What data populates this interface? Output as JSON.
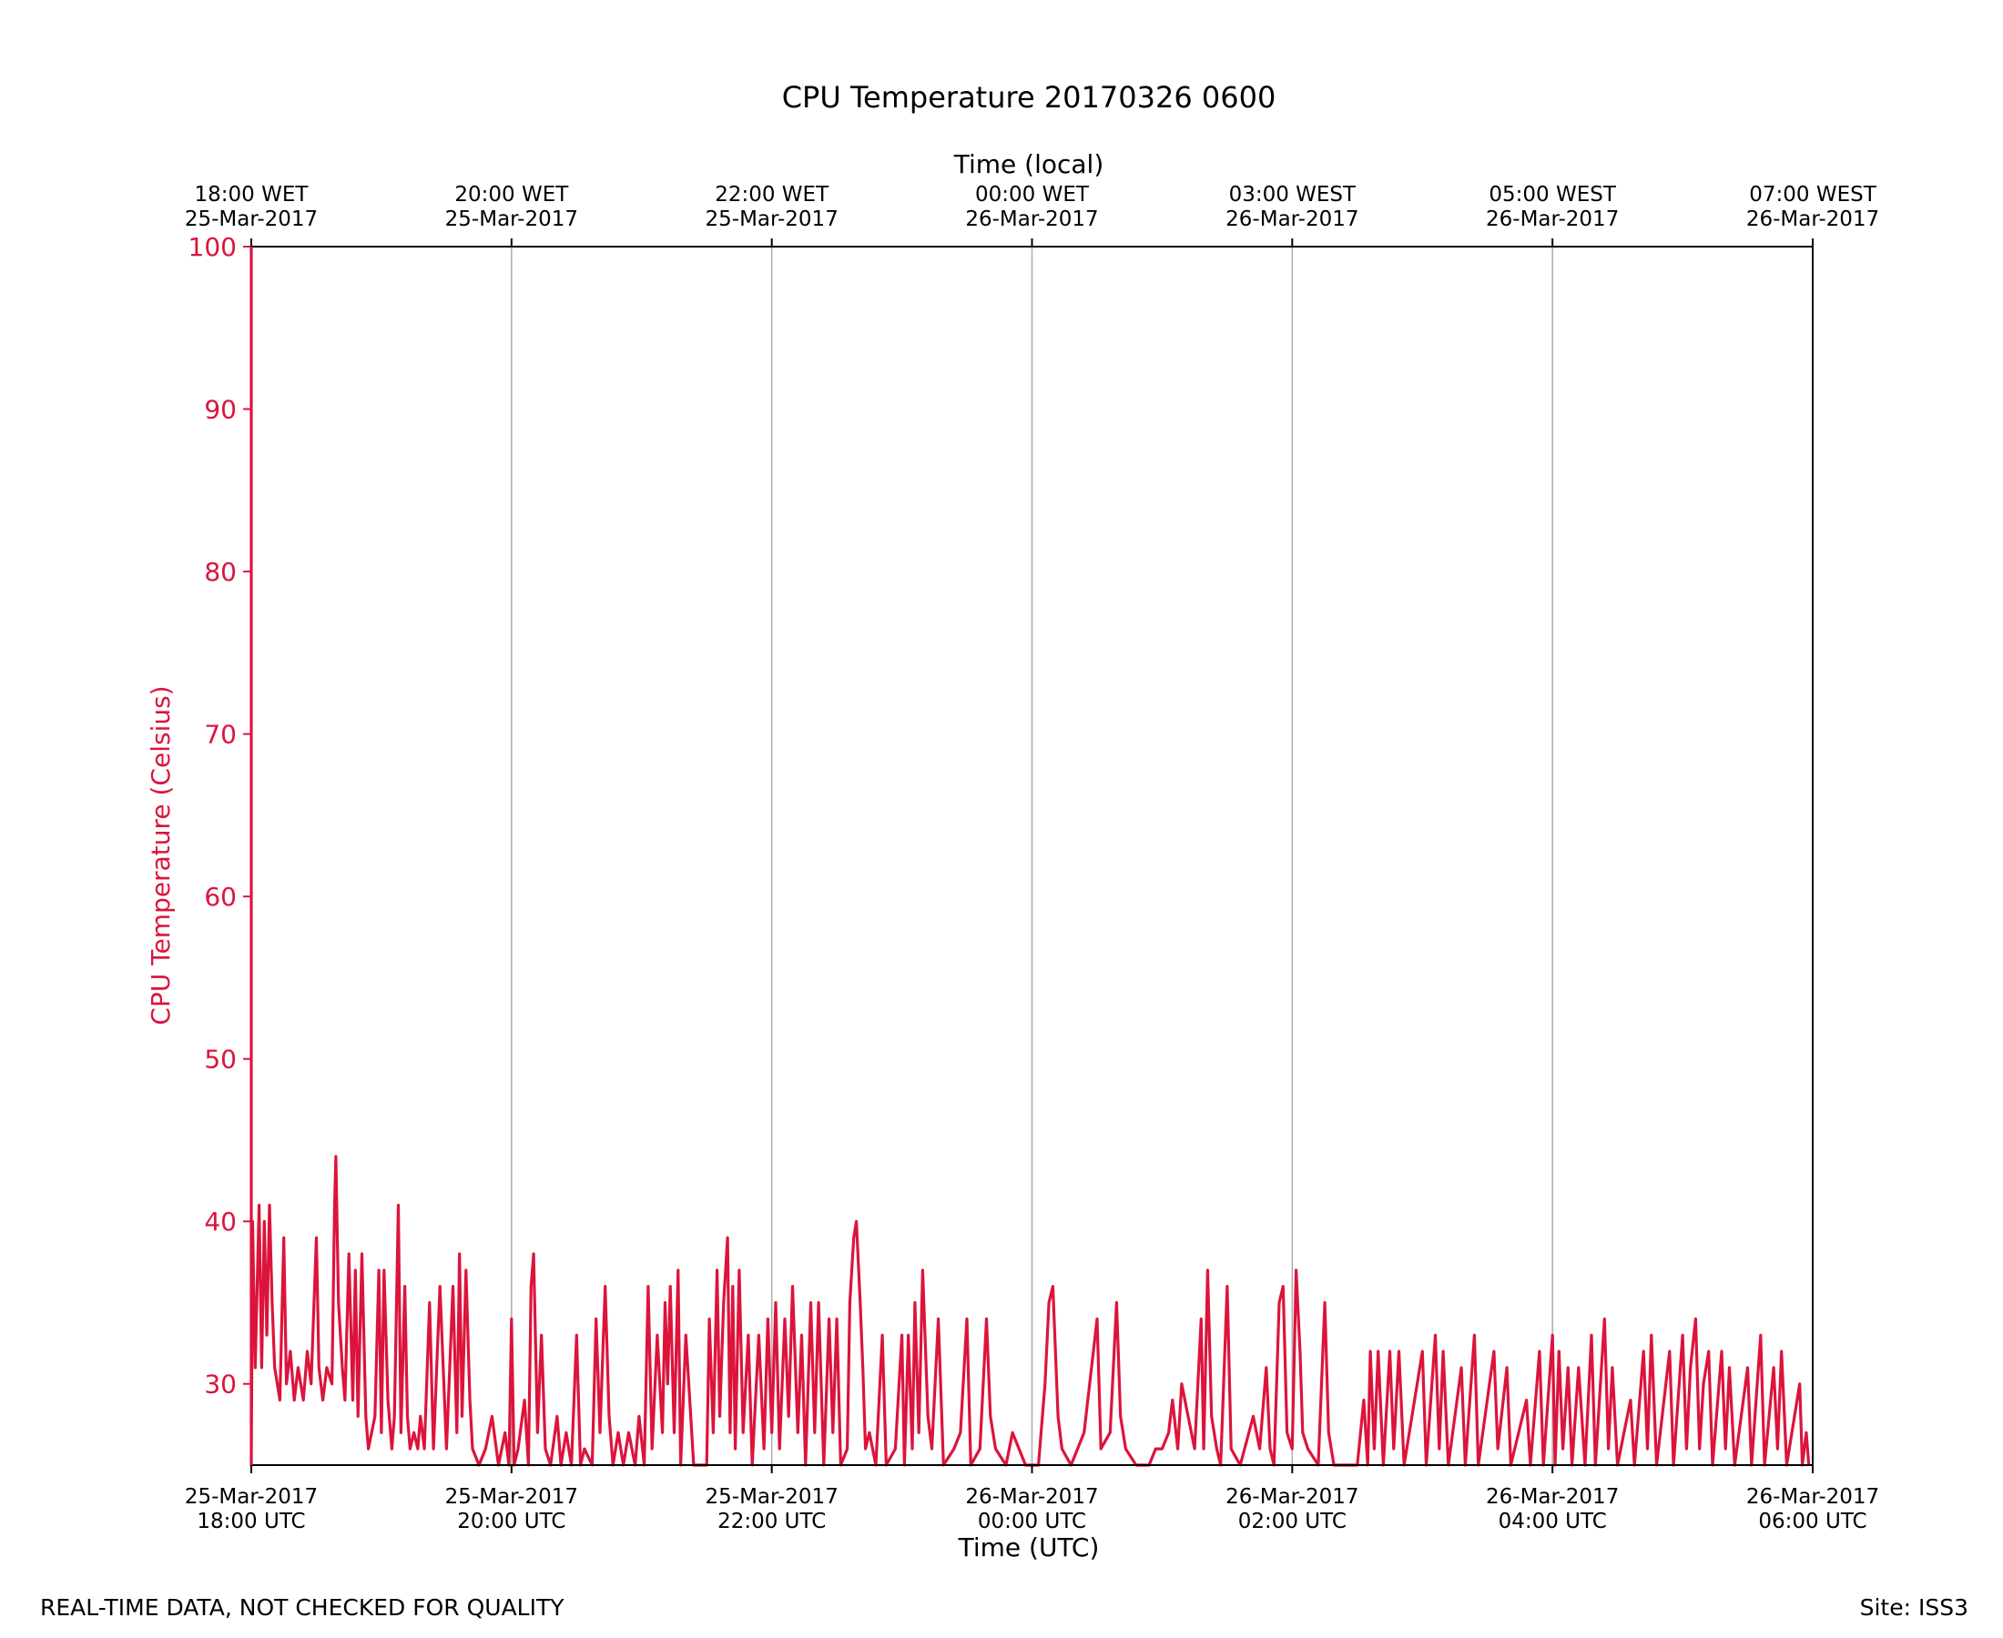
{
  "chart_data": {
    "type": "line",
    "title": "CPU Temperature 20170326 0600",
    "top_axis_title": "Time (local)",
    "xlabel": "Time (UTC)",
    "ylabel": "CPU Temperature (Celsius)",
    "ylim": [
      25,
      100
    ],
    "xlim_hours": [
      0,
      12
    ],
    "yticks": [
      30,
      40,
      50,
      60,
      70,
      80,
      90,
      100
    ],
    "bottom_ticks": [
      {
        "hour": 0,
        "line1": "25-Mar-2017",
        "line2": "18:00 UTC"
      },
      {
        "hour": 2,
        "line1": "25-Mar-2017",
        "line2": "20:00 UTC"
      },
      {
        "hour": 4,
        "line1": "25-Mar-2017",
        "line2": "22:00 UTC"
      },
      {
        "hour": 6,
        "line1": "26-Mar-2017",
        "line2": "00:00 UTC"
      },
      {
        "hour": 8,
        "line1": "26-Mar-2017",
        "line2": "02:00 UTC"
      },
      {
        "hour": 10,
        "line1": "26-Mar-2017",
        "line2": "04:00 UTC"
      },
      {
        "hour": 12,
        "line1": "26-Mar-2017",
        "line2": "06:00 UTC"
      }
    ],
    "top_ticks": [
      {
        "hour": 0,
        "line1": "18:00 WET",
        "line2": "25-Mar-2017"
      },
      {
        "hour": 2,
        "line1": "20:00 WET",
        "line2": "25-Mar-2017"
      },
      {
        "hour": 4,
        "line1": "22:00 WET",
        "line2": "25-Mar-2017"
      },
      {
        "hour": 6,
        "line1": "00:00 WET",
        "line2": "26-Mar-2017"
      },
      {
        "hour": 8,
        "line1": "03:00 WEST",
        "line2": "26-Mar-2017"
      },
      {
        "hour": 10,
        "line1": "05:00 WEST",
        "line2": "26-Mar-2017"
      },
      {
        "hour": 12,
        "line1": "07:00 WEST",
        "line2": "26-Mar-2017"
      }
    ],
    "grid_vertical": true,
    "series": [
      {
        "name": "CPU Temperature",
        "color": "#dc143c",
        "points": [
          [
            0,
            100
          ],
          [
            0,
            25
          ],
          [
            0.01,
            40
          ],
          [
            0.03,
            31
          ],
          [
            0.06,
            41
          ],
          [
            0.08,
            31
          ],
          [
            0.1,
            40
          ],
          [
            0.12,
            33
          ],
          [
            0.14,
            41
          ],
          [
            0.16,
            35
          ],
          [
            0.18,
            31
          ],
          [
            0.2,
            30
          ],
          [
            0.22,
            29
          ],
          [
            0.25,
            39
          ],
          [
            0.27,
            30
          ],
          [
            0.3,
            32
          ],
          [
            0.33,
            29
          ],
          [
            0.36,
            31
          ],
          [
            0.4,
            29
          ],
          [
            0.43,
            32
          ],
          [
            0.46,
            30
          ],
          [
            0.5,
            39
          ],
          [
            0.52,
            31
          ],
          [
            0.55,
            29
          ],
          [
            0.58,
            31
          ],
          [
            0.62,
            30
          ],
          [
            0.64,
            41
          ],
          [
            0.65,
            44
          ],
          [
            0.67,
            35
          ],
          [
            0.7,
            31
          ],
          [
            0.72,
            29
          ],
          [
            0.75,
            38
          ],
          [
            0.78,
            29
          ],
          [
            0.8,
            37
          ],
          [
            0.82,
            28
          ],
          [
            0.85,
            38
          ],
          [
            0.88,
            28
          ],
          [
            0.9,
            26
          ],
          [
            0.95,
            28
          ],
          [
            0.98,
            37
          ],
          [
            1.0,
            27
          ],
          [
            1.02,
            37
          ],
          [
            1.05,
            29
          ],
          [
            1.08,
            26
          ],
          [
            1.1,
            28
          ],
          [
            1.13,
            41
          ],
          [
            1.15,
            27
          ],
          [
            1.18,
            36
          ],
          [
            1.2,
            28
          ],
          [
            1.22,
            26
          ],
          [
            1.25,
            27
          ],
          [
            1.28,
            26
          ],
          [
            1.3,
            28
          ],
          [
            1.33,
            26
          ],
          [
            1.37,
            35
          ],
          [
            1.4,
            26
          ],
          [
            1.45,
            36
          ],
          [
            1.5,
            26
          ],
          [
            1.55,
            36
          ],
          [
            1.58,
            27
          ],
          [
            1.6,
            38
          ],
          [
            1.62,
            28
          ],
          [
            1.65,
            37
          ],
          [
            1.68,
            29
          ],
          [
            1.7,
            26
          ],
          [
            1.75,
            25
          ],
          [
            1.8,
            26
          ],
          [
            1.85,
            28
          ],
          [
            1.9,
            25
          ],
          [
            1.95,
            27
          ],
          [
            1.98,
            25
          ],
          [
            2.0,
            34
          ],
          [
            2.02,
            25
          ],
          [
            2.05,
            26
          ],
          [
            2.1,
            29
          ],
          [
            2.13,
            25
          ],
          [
            2.15,
            36
          ],
          [
            2.17,
            38
          ],
          [
            2.2,
            27
          ],
          [
            2.23,
            33
          ],
          [
            2.26,
            26
          ],
          [
            2.3,
            25
          ],
          [
            2.35,
            28
          ],
          [
            2.38,
            25
          ],
          [
            2.42,
            27
          ],
          [
            2.46,
            25
          ],
          [
            2.5,
            33
          ],
          [
            2.53,
            25
          ],
          [
            2.56,
            26
          ],
          [
            2.62,
            25
          ],
          [
            2.65,
            34
          ],
          [
            2.68,
            27
          ],
          [
            2.72,
            36
          ],
          [
            2.75,
            28
          ],
          [
            2.78,
            25
          ],
          [
            2.82,
            27
          ],
          [
            2.86,
            25
          ],
          [
            2.9,
            27
          ],
          [
            2.95,
            25
          ],
          [
            2.98,
            28
          ],
          [
            3.02,
            25
          ],
          [
            3.05,
            36
          ],
          [
            3.08,
            26
          ],
          [
            3.12,
            33
          ],
          [
            3.16,
            27
          ],
          [
            3.18,
            35
          ],
          [
            3.2,
            30
          ],
          [
            3.22,
            36
          ],
          [
            3.25,
            27
          ],
          [
            3.28,
            37
          ],
          [
            3.3,
            25
          ],
          [
            3.34,
            33
          ],
          [
            3.4,
            25
          ],
          [
            3.5,
            25
          ],
          [
            3.52,
            34
          ],
          [
            3.55,
            27
          ],
          [
            3.58,
            37
          ],
          [
            3.6,
            28
          ],
          [
            3.63,
            35
          ],
          [
            3.66,
            39
          ],
          [
            3.68,
            27
          ],
          [
            3.7,
            36
          ],
          [
            3.72,
            26
          ],
          [
            3.75,
            37
          ],
          [
            3.78,
            27
          ],
          [
            3.82,
            33
          ],
          [
            3.85,
            25
          ],
          [
            3.9,
            33
          ],
          [
            3.94,
            26
          ],
          [
            3.97,
            34
          ],
          [
            4.0,
            27
          ],
          [
            4.03,
            35
          ],
          [
            4.06,
            26
          ],
          [
            4.1,
            34
          ],
          [
            4.13,
            28
          ],
          [
            4.16,
            36
          ],
          [
            4.2,
            27
          ],
          [
            4.23,
            33
          ],
          [
            4.26,
            25
          ],
          [
            4.3,
            35
          ],
          [
            4.33,
            27
          ],
          [
            4.36,
            35
          ],
          [
            4.4,
            25
          ],
          [
            4.44,
            34
          ],
          [
            4.47,
            27
          ],
          [
            4.5,
            34
          ],
          [
            4.53,
            25
          ],
          [
            4.58,
            26
          ],
          [
            4.6,
            35
          ],
          [
            4.63,
            39
          ],
          [
            4.65,
            40
          ],
          [
            4.68,
            35
          ],
          [
            4.7,
            31
          ],
          [
            4.72,
            26
          ],
          [
            4.75,
            27
          ],
          [
            4.8,
            25
          ],
          [
            4.85,
            33
          ],
          [
            4.88,
            25
          ],
          [
            4.95,
            26
          ],
          [
            5.0,
            33
          ],
          [
            5.02,
            25
          ],
          [
            5.05,
            33
          ],
          [
            5.08,
            26
          ],
          [
            5.1,
            35
          ],
          [
            5.13,
            27
          ],
          [
            5.16,
            37
          ],
          [
            5.2,
            28
          ],
          [
            5.23,
            26
          ],
          [
            5.28,
            34
          ],
          [
            5.32,
            25
          ],
          [
            5.4,
            26
          ],
          [
            5.45,
            27
          ],
          [
            5.5,
            34
          ],
          [
            5.53,
            25
          ],
          [
            5.6,
            26
          ],
          [
            5.65,
            34
          ],
          [
            5.68,
            28
          ],
          [
            5.72,
            26
          ],
          [
            5.8,
            25
          ],
          [
            5.85,
            27
          ],
          [
            5.9,
            26
          ],
          [
            5.95,
            25
          ],
          [
            6.0,
            25
          ],
          [
            6.05,
            25
          ],
          [
            6.1,
            30
          ],
          [
            6.13,
            35
          ],
          [
            6.16,
            36
          ],
          [
            6.2,
            28
          ],
          [
            6.23,
            26
          ],
          [
            6.3,
            25
          ],
          [
            6.4,
            27
          ],
          [
            6.5,
            34
          ],
          [
            6.53,
            26
          ],
          [
            6.6,
            27
          ],
          [
            6.65,
            35
          ],
          [
            6.68,
            28
          ],
          [
            6.72,
            26
          ],
          [
            6.8,
            25
          ],
          [
            6.9,
            25
          ],
          [
            6.95,
            26
          ],
          [
            7.0,
            26
          ],
          [
            7.05,
            27
          ],
          [
            7.08,
            29
          ],
          [
            7.12,
            26
          ],
          [
            7.15,
            30
          ],
          [
            7.2,
            28
          ],
          [
            7.25,
            26
          ],
          [
            7.3,
            34
          ],
          [
            7.32,
            26
          ],
          [
            7.35,
            37
          ],
          [
            7.38,
            28
          ],
          [
            7.42,
            26
          ],
          [
            7.45,
            25
          ],
          [
            7.5,
            36
          ],
          [
            7.53,
            26
          ],
          [
            7.6,
            25
          ],
          [
            7.7,
            28
          ],
          [
            7.75,
            26
          ],
          [
            7.8,
            31
          ],
          [
            7.83,
            26
          ],
          [
            7.86,
            25
          ],
          [
            7.9,
            35
          ],
          [
            7.93,
            36
          ],
          [
            7.96,
            27
          ],
          [
            8.0,
            26
          ],
          [
            8.03,
            37
          ],
          [
            8.06,
            32
          ],
          [
            8.08,
            27
          ],
          [
            8.12,
            26
          ],
          [
            8.2,
            25
          ],
          [
            8.25,
            35
          ],
          [
            8.28,
            27
          ],
          [
            8.32,
            25
          ],
          [
            8.4,
            25
          ],
          [
            8.5,
            25
          ],
          [
            8.55,
            29
          ],
          [
            8.58,
            25
          ],
          [
            8.6,
            32
          ],
          [
            8.63,
            26
          ],
          [
            8.66,
            32
          ],
          [
            8.7,
            25
          ],
          [
            8.75,
            32
          ],
          [
            8.78,
            26
          ],
          [
            8.82,
            32
          ],
          [
            8.86,
            25
          ],
          [
            9.0,
            32
          ],
          [
            9.03,
            25
          ],
          [
            9.1,
            33
          ],
          [
            9.13,
            26
          ],
          [
            9.16,
            32
          ],
          [
            9.2,
            25
          ],
          [
            9.3,
            31
          ],
          [
            9.33,
            25
          ],
          [
            9.4,
            33
          ],
          [
            9.43,
            25
          ],
          [
            9.55,
            32
          ],
          [
            9.58,
            26
          ],
          [
            9.65,
            31
          ],
          [
            9.68,
            25
          ],
          [
            9.8,
            29
          ],
          [
            9.83,
            25
          ],
          [
            9.9,
            32
          ],
          [
            9.93,
            25
          ],
          [
            10.0,
            33
          ],
          [
            10.02,
            25
          ],
          [
            10.05,
            32
          ],
          [
            10.08,
            26
          ],
          [
            10.12,
            31
          ],
          [
            10.15,
            25
          ],
          [
            10.2,
            31
          ],
          [
            10.25,
            25
          ],
          [
            10.3,
            33
          ],
          [
            10.33,
            25
          ],
          [
            10.4,
            34
          ],
          [
            10.43,
            26
          ],
          [
            10.46,
            31
          ],
          [
            10.5,
            25
          ],
          [
            10.6,
            29
          ],
          [
            10.63,
            25
          ],
          [
            10.7,
            32
          ],
          [
            10.73,
            26
          ],
          [
            10.76,
            33
          ],
          [
            10.8,
            25
          ],
          [
            10.9,
            32
          ],
          [
            10.93,
            25
          ],
          [
            11.0,
            33
          ],
          [
            11.03,
            26
          ],
          [
            11.06,
            31
          ],
          [
            11.1,
            34
          ],
          [
            11.13,
            26
          ],
          [
            11.16,
            30
          ],
          [
            11.2,
            32
          ],
          [
            11.23,
            25
          ],
          [
            11.3,
            32
          ],
          [
            11.33,
            26
          ],
          [
            11.36,
            31
          ],
          [
            11.4,
            25
          ],
          [
            11.5,
            31
          ],
          [
            11.53,
            25
          ],
          [
            11.6,
            33
          ],
          [
            11.63,
            25
          ],
          [
            11.7,
            31
          ],
          [
            11.73,
            26
          ],
          [
            11.76,
            32
          ],
          [
            11.8,
            25
          ],
          [
            11.9,
            30
          ],
          [
            11.92,
            25
          ],
          [
            11.95,
            27
          ],
          [
            11.97,
            25
          ]
        ]
      }
    ]
  },
  "footer": {
    "note": "REAL-TIME DATA, NOT CHECKED FOR QUALITY",
    "site": "Site: ISS3"
  }
}
